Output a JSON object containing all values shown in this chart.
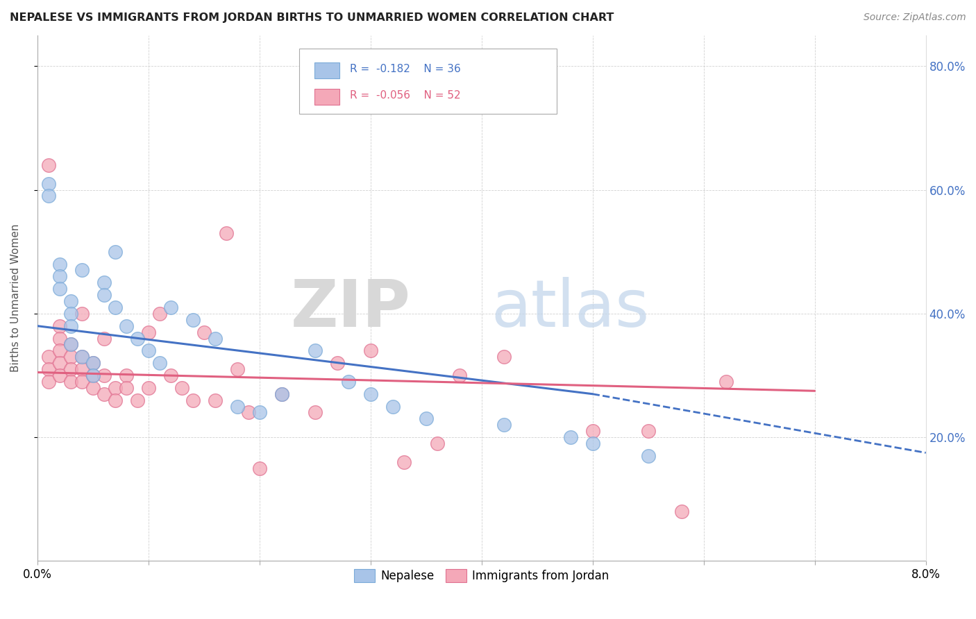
{
  "title": "NEPALESE VS IMMIGRANTS FROM JORDAN BIRTHS TO UNMARRIED WOMEN CORRELATION CHART",
  "source": "Source: ZipAtlas.com",
  "ylabel": "Births to Unmarried Women",
  "xlim": [
    0.0,
    0.08
  ],
  "ylim": [
    0.0,
    0.85
  ],
  "yticks_right": [
    0.2,
    0.4,
    0.6,
    0.8
  ],
  "ytick_right_labels": [
    "20.0%",
    "40.0%",
    "60.0%",
    "80.0%"
  ],
  "color_nepalese": "#a8c4e8",
  "color_jordan": "#f4a8b8",
  "line_color_nepalese": "#4472c4",
  "line_color_jordan": "#e06080",
  "nep_line": [
    0.0,
    0.38,
    0.05,
    0.27
  ],
  "nep_dash": [
    0.05,
    0.27,
    0.08,
    0.175
  ],
  "jor_line": [
    0.0,
    0.305,
    0.07,
    0.275
  ],
  "nepalese_x": [
    0.001,
    0.001,
    0.002,
    0.002,
    0.002,
    0.003,
    0.003,
    0.003,
    0.003,
    0.004,
    0.004,
    0.005,
    0.005,
    0.006,
    0.006,
    0.007,
    0.007,
    0.008,
    0.009,
    0.01,
    0.011,
    0.012,
    0.014,
    0.016,
    0.018,
    0.02,
    0.022,
    0.025,
    0.028,
    0.03,
    0.032,
    0.035,
    0.042,
    0.048,
    0.05,
    0.055
  ],
  "nepalese_y": [
    0.61,
    0.59,
    0.48,
    0.46,
    0.44,
    0.42,
    0.4,
    0.38,
    0.35,
    0.33,
    0.47,
    0.32,
    0.3,
    0.45,
    0.43,
    0.5,
    0.41,
    0.38,
    0.36,
    0.34,
    0.32,
    0.41,
    0.39,
    0.36,
    0.25,
    0.24,
    0.27,
    0.34,
    0.29,
    0.27,
    0.25,
    0.23,
    0.22,
    0.2,
    0.19,
    0.17
  ],
  "jordan_x": [
    0.001,
    0.001,
    0.001,
    0.001,
    0.002,
    0.002,
    0.002,
    0.002,
    0.002,
    0.003,
    0.003,
    0.003,
    0.003,
    0.004,
    0.004,
    0.004,
    0.004,
    0.005,
    0.005,
    0.005,
    0.006,
    0.006,
    0.006,
    0.007,
    0.007,
    0.008,
    0.008,
    0.009,
    0.01,
    0.01,
    0.011,
    0.012,
    0.013,
    0.014,
    0.015,
    0.016,
    0.017,
    0.018,
    0.019,
    0.02,
    0.022,
    0.025,
    0.027,
    0.03,
    0.033,
    0.036,
    0.038,
    0.042,
    0.05,
    0.055,
    0.058,
    0.062
  ],
  "jordan_y": [
    0.64,
    0.33,
    0.31,
    0.29,
    0.38,
    0.36,
    0.34,
    0.32,
    0.3,
    0.35,
    0.33,
    0.31,
    0.29,
    0.4,
    0.33,
    0.31,
    0.29,
    0.32,
    0.3,
    0.28,
    0.36,
    0.3,
    0.27,
    0.28,
    0.26,
    0.3,
    0.28,
    0.26,
    0.37,
    0.28,
    0.4,
    0.3,
    0.28,
    0.26,
    0.37,
    0.26,
    0.53,
    0.31,
    0.24,
    0.15,
    0.27,
    0.24,
    0.32,
    0.34,
    0.16,
    0.19,
    0.3,
    0.33,
    0.21,
    0.21,
    0.08,
    0.29
  ]
}
